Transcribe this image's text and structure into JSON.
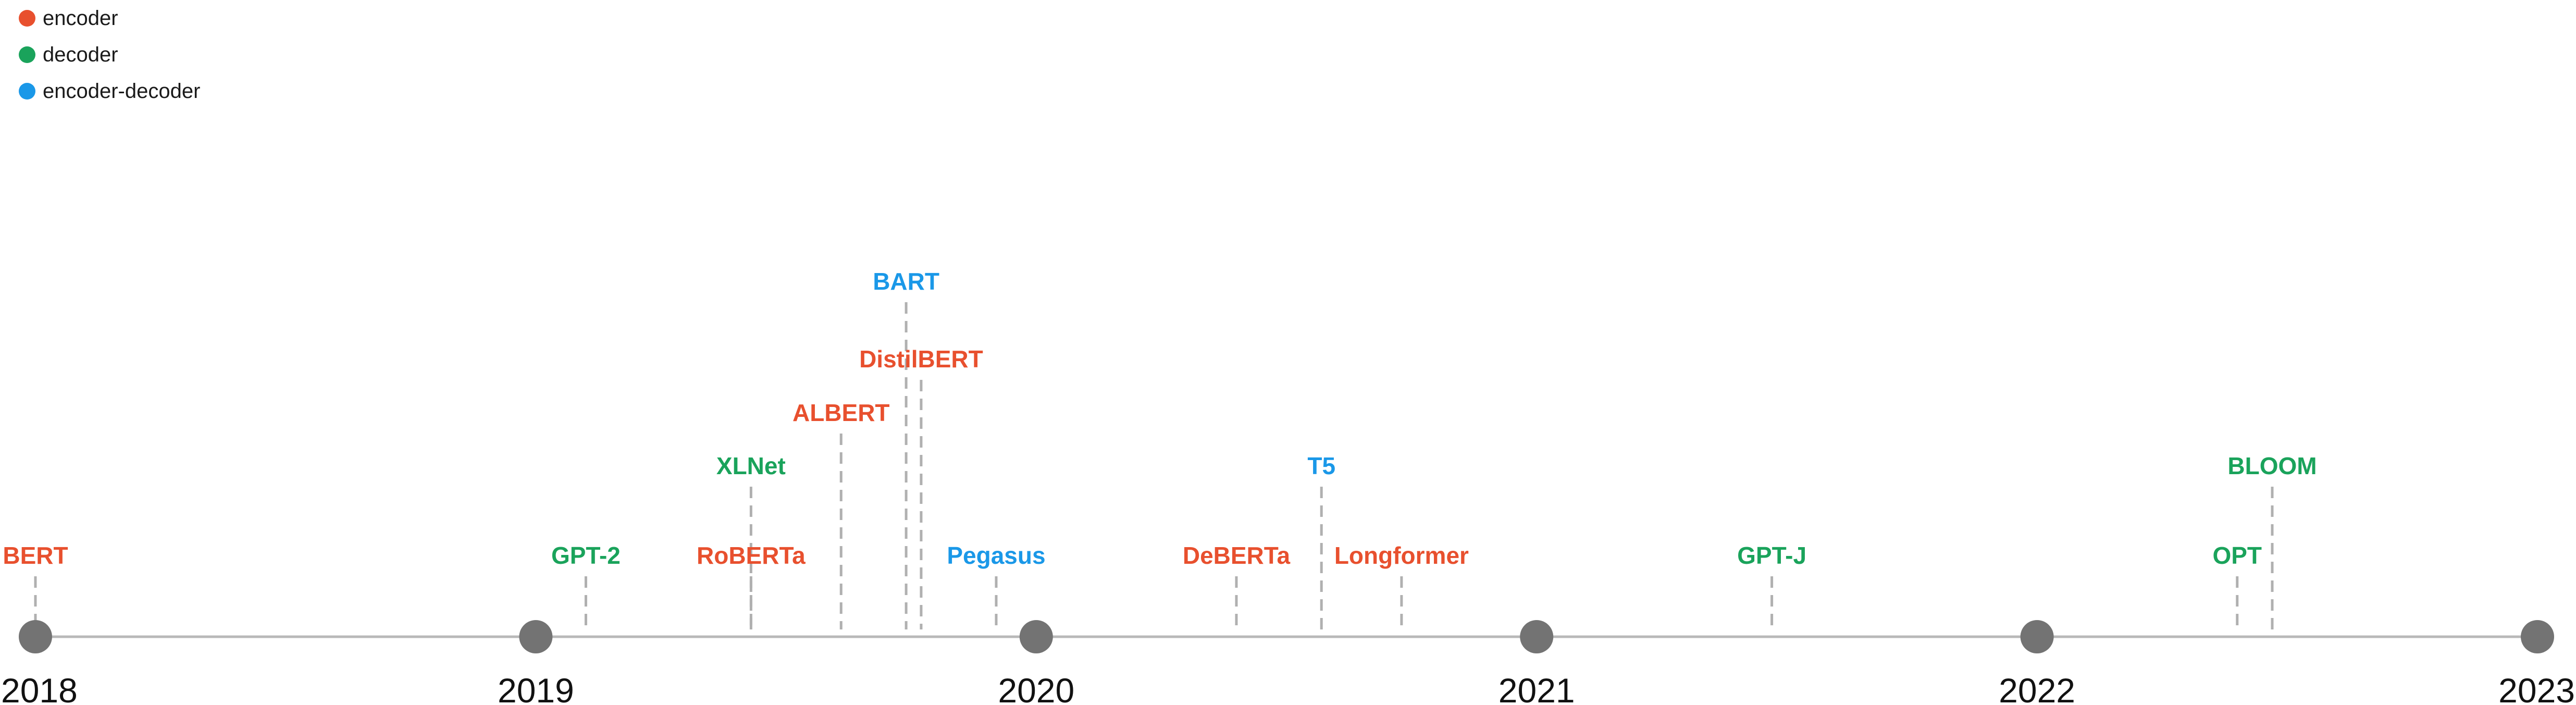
{
  "legend": [
    {
      "label": "encoder",
      "color": "#e8502e"
    },
    {
      "label": "decoder",
      "color": "#1aa35b"
    },
    {
      "label": "encoder-decoder",
      "color": "#1a98e8"
    }
  ],
  "colors": {
    "axis": "#b8b8b8",
    "year_marker": "#737373",
    "connector": "#b0b0b0",
    "year_label": "#111111"
  },
  "years": [
    "2018",
    "2019",
    "2020",
    "2021",
    "2022",
    "2023"
  ],
  "chart_data": {
    "type": "timeline",
    "x_range": [
      "2018",
      "2023"
    ],
    "models": [
      {
        "name": "BERT",
        "date": "2018.00",
        "architecture": "encoder",
        "tier": 1
      },
      {
        "name": "GPT-2",
        "date": "2019.10",
        "architecture": "decoder",
        "tier": 1
      },
      {
        "name": "RoBERTa",
        "date": "2019.43",
        "architecture": "encoder",
        "tier": 1
      },
      {
        "name": "XLNet",
        "date": "2019.43",
        "architecture": "decoder",
        "tier": 2
      },
      {
        "name": "ALBERT",
        "date": "2019.61",
        "architecture": "encoder",
        "tier": 3
      },
      {
        "name": "BART",
        "date": "2019.74",
        "architecture": "encoder-decoder",
        "tier": 5
      },
      {
        "name": "DistilBERT",
        "date": "2019.77",
        "architecture": "encoder",
        "tier": 4
      },
      {
        "name": "Pegasus",
        "date": "2019.92",
        "architecture": "encoder-decoder",
        "tier": 1
      },
      {
        "name": "DeBERTa",
        "date": "2020.40",
        "architecture": "encoder",
        "tier": 1
      },
      {
        "name": "T5",
        "date": "2020.57",
        "architecture": "encoder-decoder",
        "tier": 2
      },
      {
        "name": "Longformer",
        "date": "2020.73",
        "architecture": "encoder",
        "tier": 1
      },
      {
        "name": "GPT-J",
        "date": "2021.47",
        "architecture": "decoder",
        "tier": 1
      },
      {
        "name": "OPT",
        "date": "2022.40",
        "architecture": "decoder",
        "tier": 1
      },
      {
        "name": "BLOOM",
        "date": "2022.47",
        "architecture": "decoder",
        "tier": 2
      }
    ]
  }
}
